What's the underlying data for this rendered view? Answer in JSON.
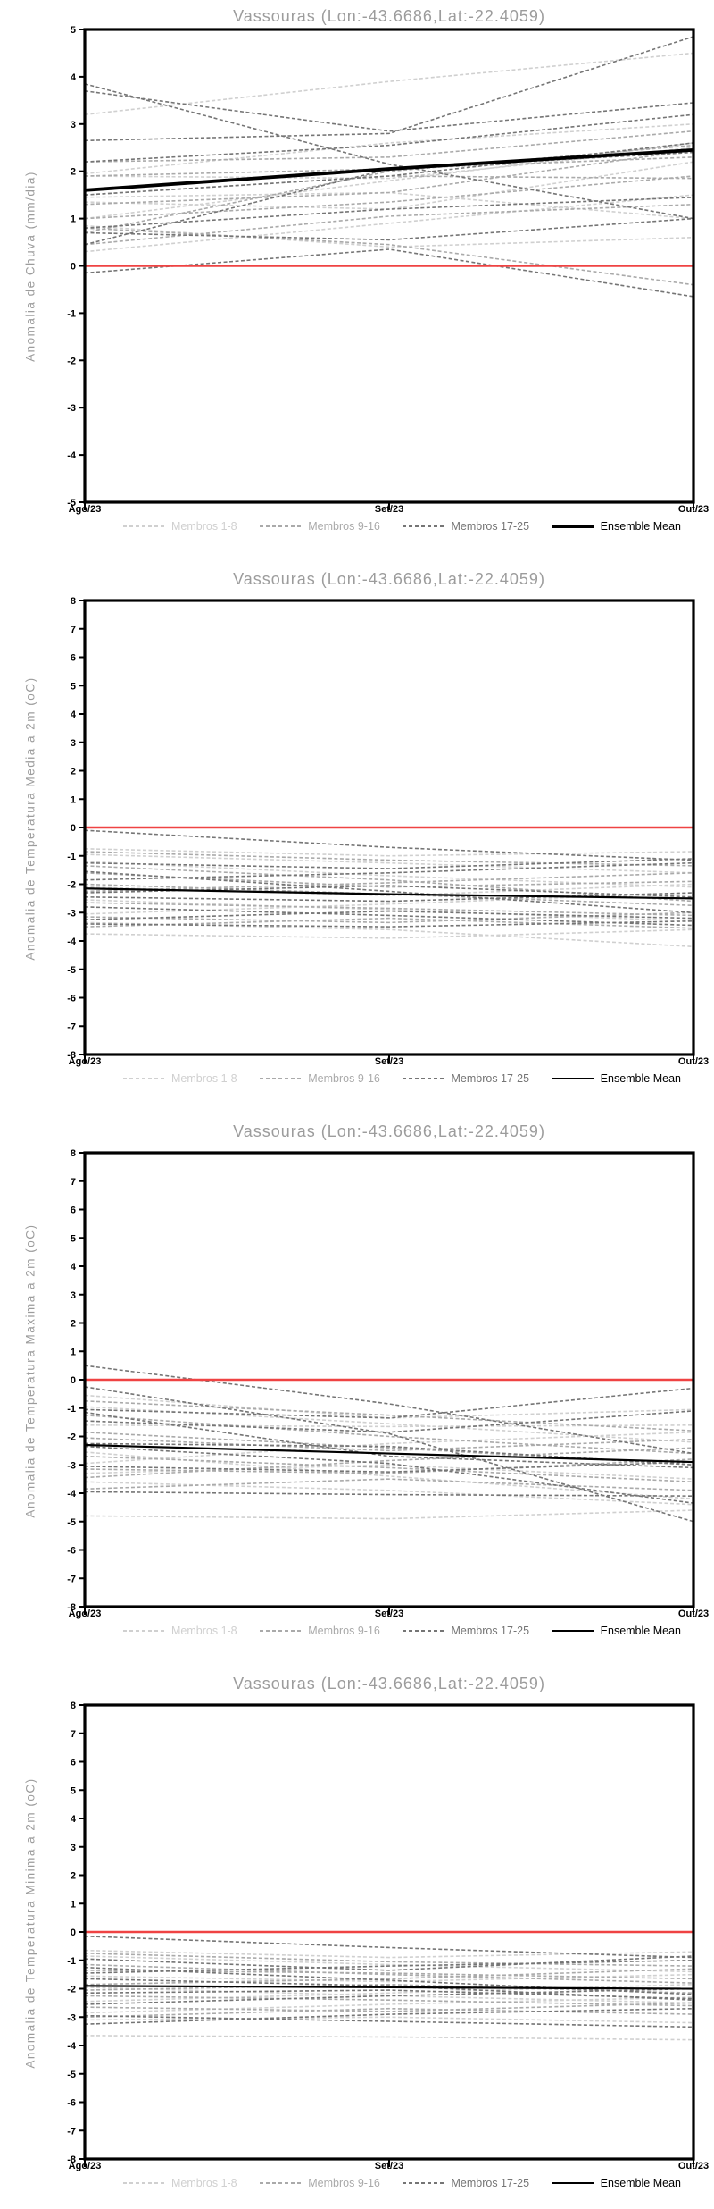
{
  "colors": {
    "background": "#ffffff",
    "axis": "#000000",
    "title_text": "#9c9c9c",
    "tick_text": "#000000",
    "zero_line": "#ef4343",
    "members_1_8": "#d0d0d0",
    "members_9_16": "#aaaaaa",
    "members_17_25": "#757575",
    "ensemble_mean": "#000000"
  },
  "legend": {
    "position": "bottom",
    "items": [
      {
        "label": "Membros 1-8",
        "color_key": "members_1_8",
        "style": "dashed"
      },
      {
        "label": "Membros 9-16",
        "color_key": "members_9_16",
        "style": "dashed"
      },
      {
        "label": "Membros 17-25",
        "color_key": "members_17_25",
        "style": "dashed"
      },
      {
        "label": "Ensemble Mean",
        "color_key": "ensemble_mean",
        "style": "solid"
      }
    ]
  },
  "chart_data": [
    {
      "type": "line",
      "title": "Vassouras (Lon:-43.6686,Lat:-22.4059)",
      "ylabel": "Anomalia de Chuva (mm/dia)",
      "x_categories": [
        "Ago/23",
        "Set/23",
        "Out/23"
      ],
      "ylim": [
        -5,
        5
      ],
      "ytick_step": 1,
      "grid": false,
      "zero_line_y": 0,
      "groups": [
        {
          "name": "Membros 1-8",
          "color_key": "members_1_8",
          "line_style": "dashed",
          "series": [
            [
              3.2,
              3.9,
              4.5
            ],
            [
              1.95,
              2.6,
              3.0
            ],
            [
              1.9,
              1.85,
              2.5
            ],
            [
              1.45,
              1.55,
              1.0
            ],
            [
              1.35,
              1.2,
              2.2
            ],
            [
              1.0,
              1.8,
              2.6
            ],
            [
              0.85,
              0.4,
              0.6
            ],
            [
              0.3,
              0.9,
              1.5
            ]
          ]
        },
        {
          "name": "Membros 9-16",
          "color_key": "members_9_16",
          "line_style": "dashed",
          "series": [
            [
              2.2,
              2.3,
              2.85
            ],
            [
              1.9,
              2.05,
              2.3
            ],
            [
              1.5,
              1.9,
              1.85
            ],
            [
              1.3,
              1.55,
              2.45
            ],
            [
              1.0,
              1.35,
              1.9
            ],
            [
              0.8,
              0.45,
              -0.4
            ],
            [
              0.45,
              1.05,
              1.3
            ],
            [
              0.7,
              2.0,
              2.55
            ]
          ]
        },
        {
          "name": "Membros 17-25",
          "color_key": "members_17_25",
          "line_style": "dashed",
          "series": [
            [
              3.85,
              2.15,
              1.0
            ],
            [
              3.7,
              2.85,
              3.45
            ],
            [
              2.65,
              2.8,
              4.85
            ],
            [
              2.2,
              2.55,
              3.2
            ],
            [
              1.5,
              1.9,
              2.6
            ],
            [
              0.8,
              1.2,
              1.45
            ],
            [
              0.7,
              0.55,
              1.0
            ],
            [
              -0.15,
              0.35,
              -0.65
            ],
            [
              0.45,
              2.05,
              2.4
            ]
          ]
        }
      ],
      "ensemble_mean": {
        "name": "Ensemble Mean",
        "color_key": "ensemble_mean",
        "values": [
          1.6,
          2.05,
          2.45
        ]
      }
    },
    {
      "type": "line",
      "title": "Vassouras (Lon:-43.6686,Lat:-22.4059)",
      "ylabel": "Anomalia de Temperatura Media a 2m (oC)",
      "x_categories": [
        "Ago/23",
        "Set/23",
        "Out/23"
      ],
      "ylim": [
        -8,
        8
      ],
      "ytick_step": 1,
      "grid": false,
      "zero_line_y": 0,
      "groups": [
        {
          "name": "Membros 1-8",
          "color_key": "members_1_8",
          "line_style": "dashed",
          "series": [
            [
              -0.75,
              -1.0,
              -0.85
            ],
            [
              -0.95,
              -1.25,
              -1.6
            ],
            [
              -1.2,
              -1.7,
              -2.1
            ],
            [
              -2.1,
              -2.4,
              -2.0
            ],
            [
              -2.55,
              -2.9,
              -3.3
            ],
            [
              -3.05,
              -2.7,
              -2.3
            ],
            [
              -3.35,
              -3.6,
              -4.2
            ],
            [
              -3.75,
              -3.9,
              -3.6
            ]
          ]
        },
        {
          "name": "Membros 9-16",
          "color_key": "members_9_16",
          "line_style": "dashed",
          "series": [
            [
              -0.85,
              -1.15,
              -1.35
            ],
            [
              -1.35,
              -1.85,
              -2.6
            ],
            [
              -2.25,
              -1.95,
              -1.6
            ],
            [
              -2.65,
              -2.85,
              -3.1
            ],
            [
              -3.15,
              -3.35,
              -3.0
            ],
            [
              -3.5,
              -3.2,
              -3.55
            ],
            [
              -2.0,
              -2.35,
              -2.75
            ],
            [
              -1.6,
              -2.1,
              -1.9
            ]
          ]
        },
        {
          "name": "Membros 17-25",
          "color_key": "members_17_25",
          "line_style": "dashed",
          "series": [
            [
              -0.1,
              -0.7,
              -1.15
            ],
            [
              -1.25,
              -1.45,
              -1.1
            ],
            [
              -1.55,
              -2.25,
              -3.0
            ],
            [
              -2.3,
              -2.05,
              -2.45
            ],
            [
              -2.8,
              -3.1,
              -3.45
            ],
            [
              -3.25,
              -2.95,
              -3.2
            ],
            [
              -2.45,
              -2.6,
              -2.3
            ],
            [
              -1.85,
              -1.6,
              -1.25
            ],
            [
              -3.4,
              -3.5,
              -3.3
            ]
          ]
        }
      ],
      "ensemble_mean": {
        "name": "Ensemble Mean",
        "color_key": "ensemble_mean",
        "values": [
          -2.15,
          -2.35,
          -2.5
        ]
      }
    },
    {
      "type": "line",
      "title": "Vassouras (Lon:-43.6686,Lat:-22.4059)",
      "ylabel": "Anomalia de Temperatura Maxima a 2m (oC)",
      "x_categories": [
        "Ago/23",
        "Set/23",
        "Out/23"
      ],
      "ylim": [
        -8,
        8
      ],
      "ytick_step": 1,
      "grid": false,
      "zero_line_y": 0,
      "groups": [
        {
          "name": "Membros 1-8",
          "color_key": "members_1_8",
          "line_style": "dashed",
          "series": [
            [
              -0.55,
              -1.35,
              -1.05
            ],
            [
              -0.95,
              -1.55,
              -2.2
            ],
            [
              -1.6,
              -1.65,
              -1.6
            ],
            [
              -2.95,
              -2.25,
              -1.85
            ],
            [
              -3.3,
              -3.0,
              -3.5
            ],
            [
              -3.6,
              -3.9,
              -4.4
            ],
            [
              -4.8,
              -4.9,
              -4.6
            ],
            [
              -2.55,
              -3.4,
              -4.2
            ]
          ]
        },
        {
          "name": "Membros 9-16",
          "color_key": "members_9_16",
          "line_style": "dashed",
          "series": [
            [
              -0.75,
              -1.25,
              -1.8
            ],
            [
              -1.25,
              -2.0,
              -2.6
            ],
            [
              -2.05,
              -2.5,
              -2.1
            ],
            [
              -2.7,
              -3.1,
              -3.6
            ],
            [
              -3.45,
              -2.85,
              -2.4
            ],
            [
              -3.85,
              -3.5,
              -3.9
            ],
            [
              -1.85,
              -2.4,
              -3.0
            ],
            [
              -3.15,
              -3.3,
              -2.8
            ]
          ]
        },
        {
          "name": "Membros 17-25",
          "color_key": "members_17_25",
          "line_style": "dashed",
          "series": [
            [
              0.5,
              -0.85,
              -2.6
            ],
            [
              -0.25,
              -1.9,
              -5.0
            ],
            [
              -1.05,
              -1.35,
              -0.3
            ],
            [
              -1.15,
              -2.7,
              -3.1
            ],
            [
              -2.25,
              -2.35,
              -3.0
            ],
            [
              -2.35,
              -2.95,
              -4.35
            ],
            [
              -3.05,
              -3.25,
              -2.9
            ],
            [
              -3.95,
              -4.05,
              -4.1
            ],
            [
              -1.45,
              -1.85,
              -1.1
            ]
          ]
        }
      ],
      "ensemble_mean": {
        "name": "Ensemble Mean",
        "color_key": "ensemble_mean",
        "values": [
          -2.3,
          -2.6,
          -2.9
        ]
      }
    },
    {
      "type": "line",
      "title": "Vassouras (Lon:-43.6686,Lat:-22.4059)",
      "ylabel": "Anomalia de Temperatura Minima a 2m (oC)",
      "x_categories": [
        "Ago/23",
        "Set/23",
        "Out/23"
      ],
      "ylim": [
        -8,
        8
      ],
      "ytick_step": 1,
      "grid": false,
      "zero_line_y": 0,
      "groups": [
        {
          "name": "Membros 1-8",
          "color_key": "members_1_8",
          "line_style": "dashed",
          "series": [
            [
              -0.65,
              -0.9,
              -0.7
            ],
            [
              -0.85,
              -1.15,
              -1.4
            ],
            [
              -1.55,
              -1.75,
              -1.5
            ],
            [
              -2.45,
              -2.15,
              -1.85
            ],
            [
              -2.85,
              -2.55,
              -2.3
            ],
            [
              -3.1,
              -3.0,
              -3.2
            ],
            [
              -3.65,
              -3.7,
              -3.8
            ],
            [
              -1.95,
              -2.25,
              -2.5
            ]
          ]
        },
        {
          "name": "Membros 9-16",
          "color_key": "members_9_16",
          "line_style": "dashed",
          "series": [
            [
              -0.75,
              -1.05,
              -1.2
            ],
            [
              -1.15,
              -1.5,
              -1.8
            ],
            [
              -1.85,
              -1.65,
              -1.3
            ],
            [
              -2.25,
              -2.4,
              -2.6
            ],
            [
              -2.65,
              -2.8,
              -2.5
            ],
            [
              -3.0,
              -2.7,
              -2.9
            ],
            [
              -1.35,
              -1.45,
              -1.65
            ],
            [
              -2.05,
              -1.85,
              -2.15
            ]
          ]
        },
        {
          "name": "Membros 17-25",
          "color_key": "members_17_25",
          "line_style": "dashed",
          "series": [
            [
              -0.15,
              -0.55,
              -0.9
            ],
            [
              -0.95,
              -1.35,
              -0.85
            ],
            [
              -1.25,
              -1.7,
              -2.2
            ],
            [
              -1.65,
              -1.9,
              -2.4
            ],
            [
              -2.15,
              -2.05,
              -2.35
            ],
            [
              -2.55,
              -2.25,
              -2.0
            ],
            [
              -2.95,
              -3.15,
              -3.35
            ],
            [
              -1.45,
              -1.2,
              -1.0
            ],
            [
              -3.25,
              -2.9,
              -2.7
            ]
          ]
        }
      ],
      "ensemble_mean": {
        "name": "Ensemble Mean",
        "color_key": "ensemble_mean",
        "values": [
          -1.9,
          -1.95,
          -2.0
        ]
      }
    }
  ]
}
